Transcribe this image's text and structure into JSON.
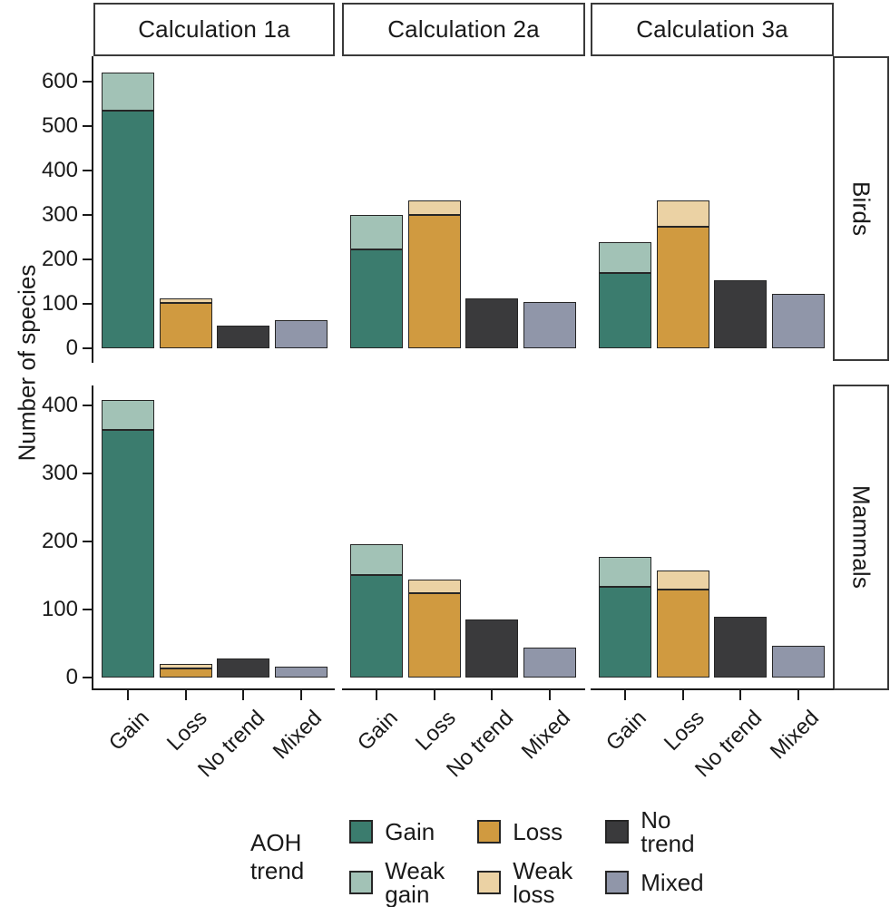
{
  "chart_data": {
    "type": "bar",
    "stacked": true,
    "title": "",
    "ylabel": "Number of species",
    "xlabel": "",
    "grid": false,
    "legend_position": "bottom",
    "facet_cols": [
      "Calculation 1a",
      "Calculation 2a",
      "Calculation 3a"
    ],
    "facet_rows": [
      "Birds",
      "Mammals"
    ],
    "categories": [
      "Gain",
      "Loss",
      "No trend",
      "Mixed"
    ],
    "segment_order": {
      "Gain": [
        "Gain",
        "Weak gain"
      ],
      "Loss": [
        "Loss",
        "Weak loss"
      ],
      "No trend": [
        "No trend"
      ],
      "Mixed": [
        "Mixed"
      ]
    },
    "colors": {
      "Gain": "#3B7C6E",
      "Weak gain": "#A2C2B6",
      "Loss": "#D09A40",
      "Weak loss": "#EBD2A4",
      "No trend": "#3A3A3C",
      "Mixed": "#9096A9"
    },
    "y_axis": {
      "Birds": {
        "ticks": [
          0,
          100,
          200,
          300,
          400,
          500,
          600
        ],
        "lim": [
          0,
          655
        ]
      },
      "Mammals": {
        "ticks": [
          0,
          100,
          200,
          300,
          400
        ],
        "lim": [
          0,
          430
        ]
      }
    },
    "panels": [
      {
        "row": "Birds",
        "col": "Calculation 1a",
        "values": {
          "Gain": {
            "Gain": 535,
            "Weak gain": 85
          },
          "Loss": {
            "Loss": 102,
            "Weak loss": 11
          },
          "No trend": {
            "No trend": 52
          },
          "Mixed": {
            "Mixed": 64
          }
        }
      },
      {
        "row": "Birds",
        "col": "Calculation 2a",
        "values": {
          "Gain": {
            "Gain": 222,
            "Weak gain": 78
          },
          "Loss": {
            "Loss": 300,
            "Weak loss": 33
          },
          "No trend": {
            "No trend": 112
          },
          "Mixed": {
            "Mixed": 105
          }
        }
      },
      {
        "row": "Birds",
        "col": "Calculation 3a",
        "values": {
          "Gain": {
            "Gain": 170,
            "Weak gain": 68
          },
          "Loss": {
            "Loss": 273,
            "Weak loss": 60
          },
          "No trend": {
            "No trend": 153
          },
          "Mixed": {
            "Mixed": 122
          }
        }
      },
      {
        "row": "Mammals",
        "col": "Calculation 1a",
        "values": {
          "Gain": {
            "Gain": 363,
            "Weak gain": 45
          },
          "Loss": {
            "Loss": 13,
            "Weak loss": 6
          },
          "No trend": {
            "No trend": 27
          },
          "Mixed": {
            "Mixed": 15
          }
        }
      },
      {
        "row": "Mammals",
        "col": "Calculation 2a",
        "values": {
          "Gain": {
            "Gain": 150,
            "Weak gain": 45
          },
          "Loss": {
            "Loss": 124,
            "Weak loss": 19
          },
          "No trend": {
            "No trend": 85
          },
          "Mixed": {
            "Mixed": 43
          }
        }
      },
      {
        "row": "Mammals",
        "col": "Calculation 3a",
        "values": {
          "Gain": {
            "Gain": 133,
            "Weak gain": 44
          },
          "Loss": {
            "Loss": 129,
            "Weak loss": 28
          },
          "No trend": {
            "No trend": 89
          },
          "Mixed": {
            "Mixed": 46
          }
        }
      }
    ],
    "legend": {
      "title_lines": [
        "AOH",
        "trend"
      ],
      "columns": [
        [
          {
            "trend": "Gain",
            "lines": [
              "Gain"
            ]
          },
          {
            "trend": "Weak gain",
            "lines": [
              "Weak",
              "gain"
            ]
          }
        ],
        [
          {
            "trend": "Loss",
            "lines": [
              "Loss"
            ]
          },
          {
            "trend": "Weak loss",
            "lines": [
              "Weak",
              "loss"
            ]
          }
        ],
        [
          {
            "trend": "No trend",
            "lines": [
              "No",
              "trend"
            ]
          },
          {
            "trend": "Mixed",
            "lines": [
              "Mixed"
            ]
          }
        ]
      ]
    }
  }
}
